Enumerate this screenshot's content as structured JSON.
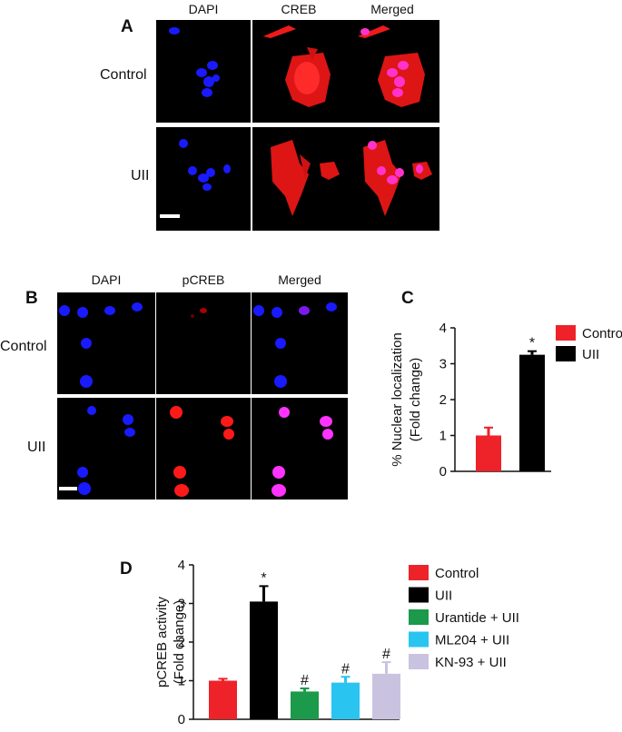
{
  "panel_a": {
    "letter": "A",
    "columns": [
      "DAPI",
      "CREB",
      "Merged"
    ],
    "rows": [
      "Control",
      "UII"
    ]
  },
  "panel_b": {
    "letter": "B",
    "columns": [
      "DAPI",
      "pCREB",
      "Merged"
    ],
    "rows": [
      "Control",
      "UII"
    ]
  },
  "colors": {
    "dapi": "#1a1aff",
    "creb": "#ff1a1a",
    "merged_nucleus": "#ff33cc",
    "control": "#ee2229",
    "uii": "#000000",
    "urantide": "#1a9a4a",
    "ml204": "#29c4f0",
    "kn93": "#c9c3e0"
  },
  "chart_data": [
    {
      "panel": "C",
      "type": "bar",
      "ylabel_line1": "% Nuclear localization",
      "ylabel_line2": "(Fold change)",
      "ylim": [
        0,
        4
      ],
      "yticks": [
        "0",
        "1",
        "2",
        "3",
        "4"
      ],
      "categories": [
        "Control",
        "UII"
      ],
      "values": [
        1.0,
        3.25
      ],
      "errors": [
        0.22,
        0.1
      ],
      "markers": [
        "",
        "*"
      ],
      "legend": [
        "Control",
        "UII"
      ],
      "legend_position": "right"
    },
    {
      "panel": "D",
      "type": "bar",
      "ylabel_line1": "pCREB activity",
      "ylabel_line2": "(Fold change)",
      "ylim": [
        0,
        4
      ],
      "yticks": [
        "0",
        "1",
        "2",
        "3",
        "4"
      ],
      "categories": [
        "Control",
        "UII",
        "Urantide + UII",
        "ML204 + UII",
        "KN-93 + UII"
      ],
      "values": [
        1.0,
        3.05,
        0.72,
        0.95,
        1.18
      ],
      "errors": [
        0.05,
        0.4,
        0.08,
        0.15,
        0.3
      ],
      "markers": [
        "",
        "*",
        "#",
        "#",
        "#"
      ],
      "legend": [
        "Control",
        "UII",
        "Urantide + UII",
        "ML204 + UII",
        "KN-93 + UII"
      ],
      "legend_position": "right"
    }
  ]
}
